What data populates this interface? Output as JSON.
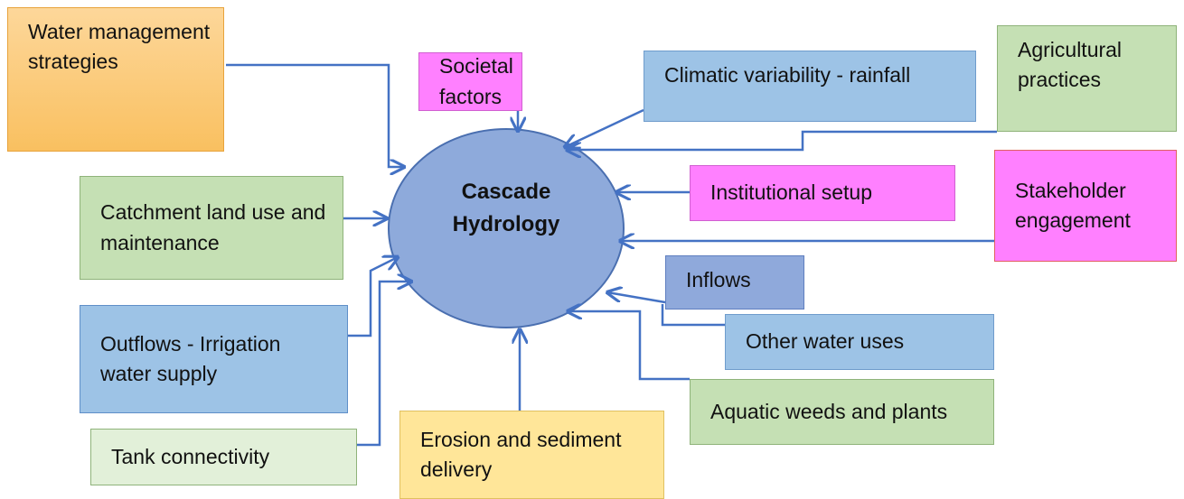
{
  "center": {
    "label": "Cascade Hydrology"
  },
  "nodes": [
    {
      "label": "Water management strategies"
    },
    {
      "label": "Societal factors"
    },
    {
      "label": "Climatic variability - rainfall"
    },
    {
      "label": "Agricultural practices"
    },
    {
      "label": "Catchment land use and maintenance"
    },
    {
      "label": "Institutional setup"
    },
    {
      "label": "Stakeholder engagement"
    },
    {
      "label": "Inflows"
    },
    {
      "label": "Outflows - Irrigation water supply"
    },
    {
      "label": "Other water uses"
    },
    {
      "label": "Aquatic weeds and plants"
    },
    {
      "label": "Tank connectivity"
    },
    {
      "label": "Erosion and sediment delivery"
    }
  ]
}
